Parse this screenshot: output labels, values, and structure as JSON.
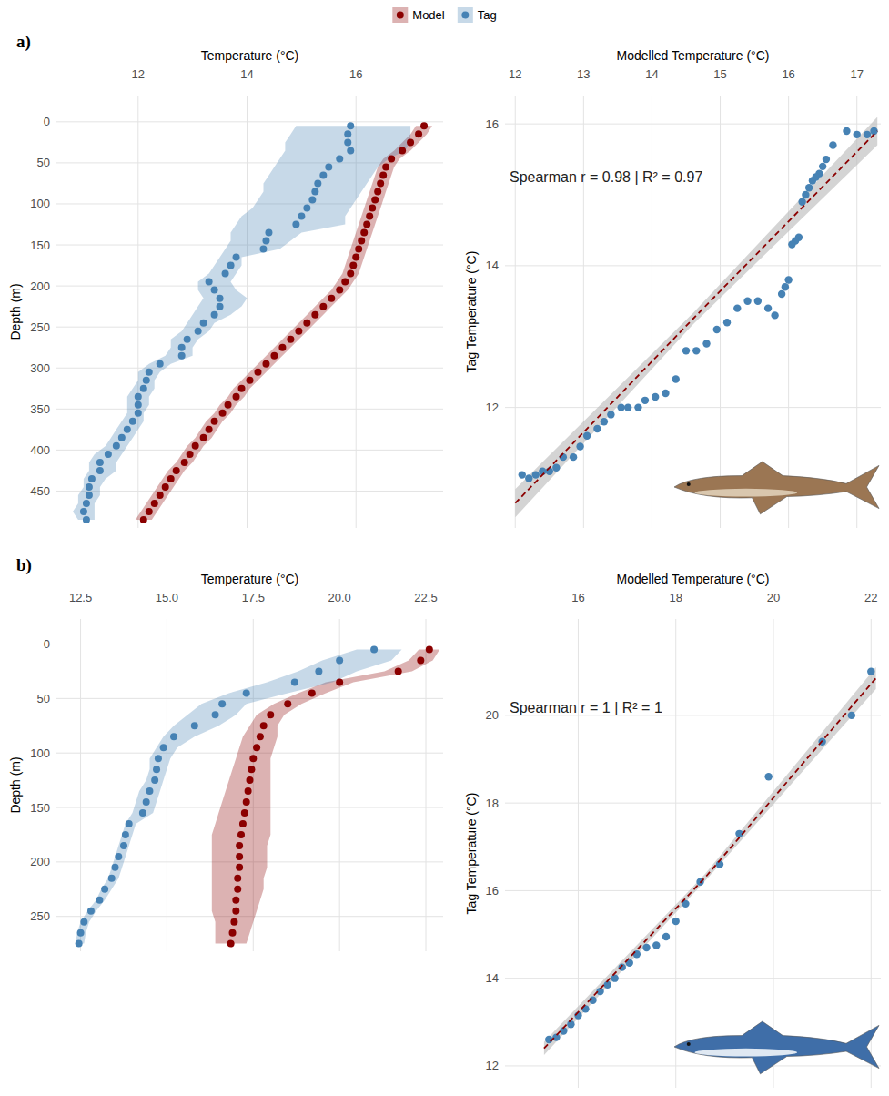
{
  "chart_data": [
    {
      "type": "profile",
      "panel_label": "a)",
      "legend": "top",
      "grid": true,
      "x_label": "Temperature (°C)",
      "y_label": "Depth (m)",
      "xlim": [
        10.5,
        17.6
      ],
      "xticks": [
        12,
        14,
        16
      ],
      "ylim": [
        495,
        -32
      ],
      "yticks": [
        0,
        50,
        100,
        150,
        200,
        250,
        300,
        350,
        400,
        450
      ],
      "y": [
        5,
        15,
        25,
        35,
        45,
        55,
        65,
        75,
        85,
        95,
        105,
        115,
        125,
        135,
        145,
        155,
        165,
        175,
        185,
        195,
        205,
        215,
        225,
        235,
        245,
        255,
        265,
        275,
        285,
        295,
        305,
        315,
        325,
        335,
        345,
        355,
        365,
        375,
        385,
        395,
        405,
        415,
        425,
        435,
        445,
        455,
        465,
        475,
        485
      ],
      "series": [
        {
          "name": "Model",
          "color": "#8b0000",
          "marker": "circle",
          "values": [
            17.25,
            17.15,
            17.0,
            16.85,
            16.65,
            16.55,
            16.5,
            16.45,
            16.4,
            16.35,
            16.3,
            16.25,
            16.2,
            16.15,
            16.1,
            16.05,
            16.0,
            15.95,
            15.9,
            15.8,
            15.7,
            15.55,
            15.4,
            15.25,
            15.1,
            14.95,
            14.8,
            14.65,
            14.5,
            14.35,
            14.2,
            14.05,
            13.9,
            13.8,
            13.65,
            13.55,
            13.4,
            13.3,
            13.2,
            13.05,
            12.95,
            12.85,
            12.7,
            12.6,
            12.5,
            12.4,
            12.3,
            12.2,
            12.1
          ],
          "lower": [
            17.1,
            17.0,
            16.85,
            16.7,
            16.5,
            16.4,
            16.35,
            16.3,
            16.25,
            16.2,
            16.15,
            16.1,
            16.05,
            16.0,
            15.95,
            15.9,
            15.85,
            15.8,
            15.75,
            15.65,
            15.55,
            15.4,
            15.25,
            15.1,
            14.95,
            14.8,
            14.65,
            14.5,
            14.35,
            14.2,
            14.05,
            13.9,
            13.75,
            13.65,
            13.5,
            13.4,
            13.25,
            13.15,
            13.05,
            12.9,
            12.8,
            12.7,
            12.55,
            12.45,
            12.35,
            12.25,
            12.15,
            12.05,
            11.95
          ],
          "upper": [
            17.4,
            17.3,
            17.15,
            17.0,
            16.8,
            16.7,
            16.65,
            16.6,
            16.55,
            16.5,
            16.45,
            16.4,
            16.35,
            16.3,
            16.25,
            16.2,
            16.15,
            16.1,
            16.05,
            15.95,
            15.85,
            15.7,
            15.55,
            15.4,
            15.25,
            15.1,
            14.95,
            14.8,
            14.65,
            14.5,
            14.35,
            14.2,
            14.05,
            13.95,
            13.8,
            13.7,
            13.55,
            13.45,
            13.35,
            13.2,
            13.1,
            13.0,
            12.85,
            12.75,
            12.65,
            12.55,
            12.45,
            12.35,
            12.25
          ]
        },
        {
          "name": "Tag",
          "color": "#4682b4",
          "marker": "circle",
          "values": [
            15.9,
            15.85,
            15.85,
            15.9,
            15.7,
            15.5,
            15.4,
            15.3,
            15.25,
            15.2,
            15.1,
            15.0,
            14.9,
            14.4,
            14.35,
            14.3,
            13.8,
            13.7,
            13.6,
            13.3,
            13.4,
            13.5,
            13.5,
            13.4,
            13.2,
            13.1,
            12.9,
            12.8,
            12.8,
            12.4,
            12.2,
            12.15,
            12.1,
            12.0,
            12.0,
            12.0,
            11.9,
            11.8,
            11.7,
            11.6,
            11.45,
            11.3,
            11.3,
            11.15,
            11.1,
            11.1,
            11.05,
            11.0,
            11.05
          ],
          "lower": [
            14.9,
            14.8,
            14.7,
            14.7,
            14.6,
            14.5,
            14.4,
            14.3,
            14.3,
            14.2,
            14.1,
            13.9,
            13.8,
            13.7,
            13.7,
            13.6,
            13.5,
            13.4,
            13.3,
            13.1,
            13.1,
            13.2,
            13.1,
            13.0,
            12.9,
            12.8,
            12.6,
            12.6,
            12.5,
            12.2,
            12.0,
            12.0,
            11.9,
            11.8,
            11.8,
            11.8,
            11.7,
            11.6,
            11.5,
            11.4,
            11.2,
            11.1,
            11.1,
            11.0,
            11.0,
            10.9,
            10.9,
            10.8,
            10.9
          ],
          "upper": [
            17.0,
            17.0,
            17.0,
            16.9,
            16.6,
            16.4,
            16.3,
            16.2,
            16.1,
            16.0,
            15.9,
            15.8,
            15.8,
            15.0,
            14.8,
            14.6,
            13.9,
            13.9,
            13.8,
            13.7,
            13.8,
            14.0,
            13.9,
            13.7,
            13.4,
            13.3,
            13.1,
            13.0,
            13.0,
            12.6,
            12.4,
            12.3,
            12.3,
            12.2,
            12.2,
            12.1,
            12.1,
            12.0,
            11.9,
            11.8,
            11.7,
            11.6,
            11.6,
            11.4,
            11.3,
            11.3,
            11.2,
            11.2,
            11.2
          ]
        }
      ]
    },
    {
      "type": "scatter",
      "grid": true,
      "color": "#4682b4",
      "marker": "circle",
      "x_label": "Modelled Temperature (°C)",
      "y_label": "Tag Temperature (°C)",
      "annotation": "Spearman r = 0.98 | R² = 0.97",
      "xlim": [
        11.85,
        17.35
      ],
      "xticks": [
        12,
        13,
        14,
        15,
        16,
        17
      ],
      "ylim": [
        10.3,
        16.4
      ],
      "yticks": [
        12,
        14,
        16
      ],
      "x": [
        17.25,
        17.15,
        17.0,
        16.85,
        16.65,
        16.55,
        16.5,
        16.45,
        16.4,
        16.35,
        16.3,
        16.25,
        16.2,
        16.15,
        16.1,
        16.05,
        16.0,
        15.95,
        15.9,
        15.8,
        15.7,
        15.55,
        15.4,
        15.25,
        15.1,
        14.95,
        14.8,
        14.65,
        14.5,
        14.35,
        14.2,
        14.05,
        13.9,
        13.8,
        13.65,
        13.55,
        13.4,
        13.3,
        13.2,
        13.05,
        12.95,
        12.85,
        12.7,
        12.6,
        12.5,
        12.4,
        12.3,
        12.2,
        12.1
      ],
      "values": [
        15.9,
        15.85,
        15.85,
        15.9,
        15.7,
        15.5,
        15.4,
        15.3,
        15.25,
        15.2,
        15.1,
        15.0,
        14.9,
        14.4,
        14.35,
        14.3,
        13.8,
        13.7,
        13.6,
        13.3,
        13.4,
        13.5,
        13.5,
        13.4,
        13.2,
        13.1,
        12.9,
        12.8,
        12.8,
        12.4,
        12.2,
        12.15,
        12.1,
        12.0,
        12.0,
        12.0,
        11.9,
        11.8,
        11.7,
        11.6,
        11.45,
        11.3,
        11.3,
        11.15,
        11.1,
        11.1,
        11.05,
        11.0,
        11.05
      ],
      "fit": {
        "color": "#8b0000",
        "line_style": "dashed",
        "x": [
          12.0,
          14.6,
          17.3
        ],
        "values": [
          10.65,
          13.25,
          15.9
        ],
        "lower": [
          10.45,
          13.17,
          15.7
        ],
        "upper": [
          10.85,
          13.33,
          16.1
        ]
      }
    },
    {
      "type": "profile",
      "panel_label": "b)",
      "grid": true,
      "x_label": "Temperature (°C)",
      "y_label": "Depth (m)",
      "xlim": [
        11.8,
        23.0
      ],
      "xticks": [
        12.5,
        {
          "value": 15,
          "label": "15.0"
        },
        17.5,
        {
          "value": 20,
          "label": "20.0"
        },
        22.5
      ],
      "ylim": [
        282,
        -23
      ],
      "yticks": [
        0,
        50,
        100,
        150,
        200,
        250
      ],
      "y": [
        5,
        15,
        25,
        35,
        45,
        55,
        65,
        75,
        85,
        95,
        105,
        115,
        125,
        135,
        145,
        155,
        165,
        175,
        185,
        195,
        205,
        215,
        225,
        235,
        245,
        255,
        265,
        275
      ],
      "series": [
        {
          "color": "#8b0000",
          "marker": "circle",
          "values": [
            22.6,
            22.35,
            21.7,
            20.0,
            19.2,
            18.5,
            18.0,
            17.8,
            17.7,
            17.6,
            17.5,
            17.45,
            17.4,
            17.35,
            17.3,
            17.25,
            17.2,
            17.15,
            17.1,
            17.1,
            17.1,
            17.05,
            17.05,
            17.0,
            17.0,
            16.95,
            16.9,
            16.85
          ],
          "lower": [
            22.3,
            22.0,
            21.3,
            19.6,
            18.8,
            18.1,
            17.6,
            17.4,
            17.2,
            17.1,
            17.0,
            16.9,
            16.8,
            16.7,
            16.6,
            16.5,
            16.4,
            16.3,
            16.3,
            16.3,
            16.3,
            16.3,
            16.3,
            16.3,
            16.3,
            16.4,
            16.4,
            16.4
          ],
          "upper": [
            22.9,
            22.7,
            22.1,
            20.4,
            19.6,
            18.9,
            18.4,
            18.2,
            18.2,
            18.1,
            18.0,
            18.0,
            18.0,
            18.0,
            18.0,
            18.0,
            18.0,
            18.0,
            17.9,
            17.9,
            17.9,
            17.8,
            17.8,
            17.7,
            17.6,
            17.5,
            17.4,
            17.3
          ]
        },
        {
          "color": "#4682b4",
          "marker": "circle",
          "values": [
            21.0,
            20.0,
            19.4,
            18.7,
            17.3,
            16.6,
            16.4,
            15.8,
            15.2,
            14.9,
            14.75,
            14.7,
            14.65,
            14.5,
            14.4,
            14.3,
            13.9,
            13.8,
            13.75,
            13.6,
            13.5,
            13.4,
            13.2,
            13.05,
            12.8,
            12.6,
            12.5,
            12.45
          ],
          "lower": [
            20.5,
            19.5,
            18.8,
            17.9,
            16.8,
            16.0,
            15.6,
            15.2,
            14.9,
            14.7,
            14.5,
            14.5,
            14.4,
            14.2,
            14.1,
            14.0,
            13.8,
            13.7,
            13.6,
            13.5,
            13.4,
            13.3,
            13.1,
            12.95,
            12.7,
            12.5,
            12.4,
            12.35
          ],
          "upper": [
            21.8,
            21.5,
            20.5,
            19.8,
            18.5,
            17.3,
            17.0,
            16.5,
            15.8,
            15.3,
            15.1,
            15.0,
            14.9,
            14.8,
            14.7,
            14.6,
            14.1,
            14.0,
            13.9,
            13.8,
            13.7,
            13.6,
            13.4,
            13.2,
            12.95,
            12.75,
            12.65,
            12.6
          ]
        }
      ]
    },
    {
      "type": "scatter",
      "grid": true,
      "color": "#4682b4",
      "marker": "circle",
      "x_label": "Modelled Temperature (°C)",
      "y_label": "Tag Temperature (°C)",
      "annotation": "Spearman r = 1 | R² = 1",
      "xlim": [
        14.5,
        22.2
      ],
      "xticks": [
        16,
        18,
        20,
        22
      ],
      "ylim": [
        11.5,
        22.2
      ],
      "yticks": [
        12,
        14,
        16,
        18,
        20
      ],
      "x": [
        15.4,
        15.55,
        15.7,
        15.85,
        16.0,
        16.15,
        16.3,
        16.45,
        16.6,
        16.75,
        16.9,
        17.05,
        17.2,
        17.4,
        17.6,
        17.8,
        18.0,
        18.2,
        18.5,
        18.9,
        19.3,
        19.9,
        21.0,
        21.6,
        22.0
      ],
      "values": [
        12.6,
        12.65,
        12.8,
        12.95,
        13.15,
        13.3,
        13.5,
        13.7,
        13.85,
        14.0,
        14.25,
        14.35,
        14.55,
        14.7,
        14.75,
        14.95,
        15.3,
        15.7,
        16.2,
        16.6,
        17.3,
        18.6,
        19.4,
        20.0,
        21.0
      ],
      "fit": {
        "color": "#8b0000",
        "line_style": "dashed",
        "x": [
          15.3,
          18.6,
          22.1
        ],
        "values": [
          12.4,
          16.3,
          20.85
        ],
        "lower": [
          12.25,
          16.22,
          20.6
        ],
        "upper": [
          12.55,
          16.38,
          21.1
        ]
      }
    }
  ]
}
